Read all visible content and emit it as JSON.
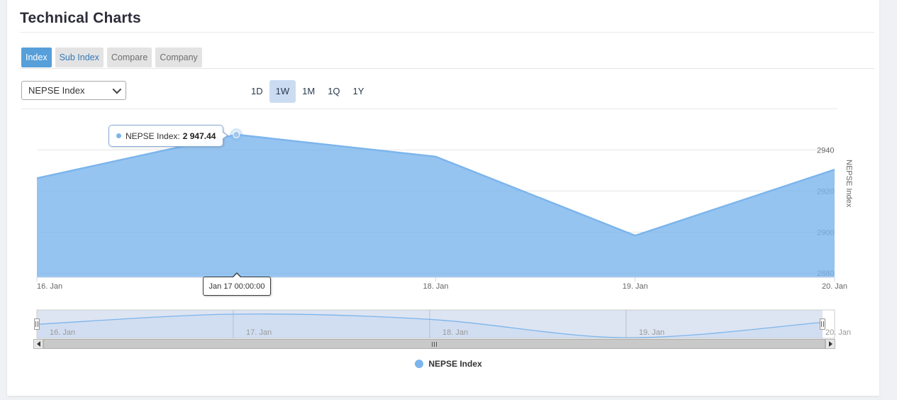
{
  "header": {
    "title": "Technical Charts"
  },
  "tabs": [
    {
      "label": "Index",
      "active": true
    },
    {
      "label": "Sub Index",
      "active": false
    },
    {
      "label": "Compare",
      "active": false
    },
    {
      "label": "Company",
      "active": false
    }
  ],
  "controls": {
    "index_select": {
      "value": "NEPSE Index"
    },
    "ranges": [
      {
        "label": "1D",
        "selected": false
      },
      {
        "label": "1W",
        "selected": true
      },
      {
        "label": "1M",
        "selected": false
      },
      {
        "label": "1Q",
        "selected": false
      },
      {
        "label": "1Y",
        "selected": false
      }
    ]
  },
  "tooltip": {
    "label": "NEPSE Index:",
    "value": "2 947.44"
  },
  "crosshair": {
    "label": "Jan 17 00:00:00"
  },
  "legend": {
    "items": [
      {
        "label": "NEPSE Index",
        "color": "#7cb5ec"
      }
    ]
  },
  "colors": {
    "accent": "#7cb5ec",
    "area_fill": "rgba(124,181,236,0.8)",
    "marker_fill": "#a3c6ec",
    "halo_fill": "rgba(124,181,236,0.3)",
    "active_tab_bg": "#569fd9",
    "subindex_text": "#3379b7",
    "tab_bg": "#e3e3e3",
    "range_selected_bg": "#cbdcf2",
    "grid": "#e6e6e6",
    "axis_line": "#ccd6eb",
    "axis_label": "#666666",
    "nav_label": "#999999",
    "nav_mask": "rgba(102,133,194,0.22)",
    "nav_grid": "#b9c1d2",
    "page_bg": "#eff1f4",
    "card_bg": "#ffffff"
  },
  "chart_data": {
    "type": "area",
    "title": "",
    "categories": [
      "16. Jan",
      "17. Jan",
      "18. Jan",
      "19. Jan",
      "20. Jan"
    ],
    "series": [
      {
        "name": "NEPSE Index",
        "color": "#7cb5ec",
        "values": [
          2926.2,
          2947.44,
          2936.7,
          2898.3,
          2930.4
        ]
      }
    ],
    "highlighted_point": {
      "category": "17. Jan",
      "value": 2947.44,
      "value_display": "2 947.44",
      "datetime_label": "Jan 17 00:00:00"
    },
    "xlabel": "",
    "ylabel": "NEPSE Index",
    "yaxis": {
      "title": "NEPSE Index",
      "ticks": [
        2880,
        2900,
        2920,
        2940
      ],
      "range": [
        2878,
        2956
      ],
      "position": "right"
    },
    "xaxis": {
      "labels": [
        "16. Jan",
        "17. Jan",
        "18. Jan",
        "19. Jan",
        "20. Jan"
      ]
    },
    "navigator": {
      "labels": [
        "16. Jan",
        "17. Jan",
        "18. Jan",
        "19. Jan",
        "20. Jan"
      ],
      "range": [
        2897,
        2956.4
      ]
    },
    "legend_position": "bottom-center",
    "grid": "on"
  }
}
